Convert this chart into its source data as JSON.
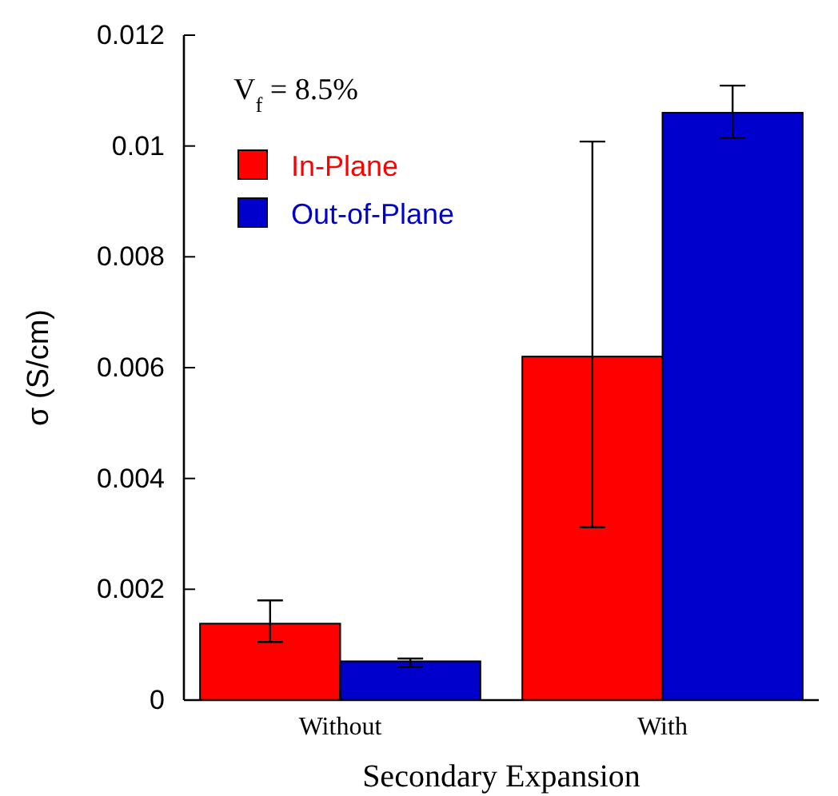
{
  "chart_data": {
    "type": "bar",
    "xlabel": "Secondary Expansion",
    "ylabel": "σ (S/cm)",
    "categories": [
      "Without",
      "With"
    ],
    "series": [
      {
        "name": "In-Plane",
        "color": "#ff0000",
        "values": [
          0.00138,
          0.0062
        ],
        "errors": [
          [
            0.00105,
            0.0018
          ],
          [
            0.00312,
            0.01008
          ]
        ]
      },
      {
        "name": "Out-of-Plane",
        "color": "#0000cc",
        "values": [
          0.0007,
          0.0106
        ],
        "errors": [
          [
            0.0006,
            0.00075
          ],
          [
            0.01015,
            0.01109
          ]
        ]
      }
    ],
    "ylim": [
      0,
      0.012
    ],
    "yticks": [
      0,
      0.002,
      0.004,
      0.006,
      0.008,
      0.01,
      0.012
    ],
    "annotations": [
      "V$_{f}$ = 8.5%"
    ],
    "legend": "top left"
  }
}
